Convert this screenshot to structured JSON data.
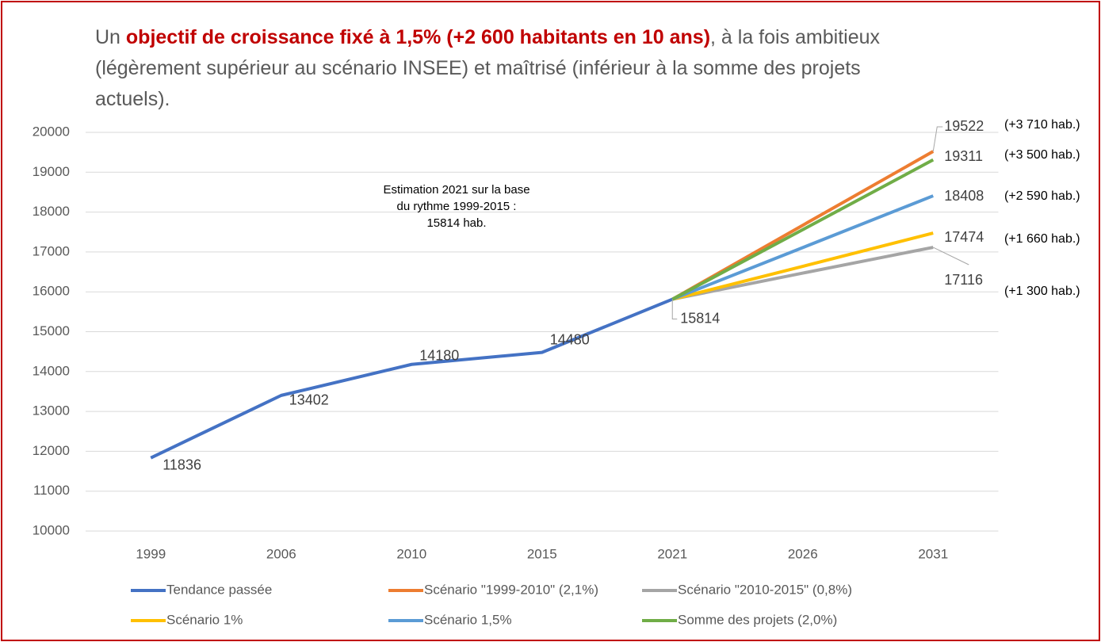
{
  "chart_data": {
    "type": "line",
    "title_parts": [
      "Un ",
      "objectif de croissance fixé à 1,5% (+2 600 habitants en 10 ans)",
      ", à la fois ambitieux (légèrement supérieur au scénario INSEE) et maîtrisé (inférieur à la somme des projets actuels)."
    ],
    "categories": [
      "1999",
      "2006",
      "2010",
      "2015",
      "2021",
      "2026",
      "2031"
    ],
    "series": [
      {
        "name": "Tendance passée",
        "color": "#4472c4",
        "values": [
          11836,
          13402,
          14180,
          14480,
          15814,
          null,
          null
        ]
      },
      {
        "name": "Scénario \"1999-2010\" (2,1%)",
        "color": "#ed7d31",
        "values": [
          null,
          null,
          null,
          null,
          15814,
          17670,
          19522
        ]
      },
      {
        "name": "Scénario \"2010-2015\" (0,8%)",
        "color": "#a5a5a5",
        "values": [
          null,
          null,
          null,
          null,
          15814,
          16470,
          17116
        ]
      },
      {
        "name": "Scénario 1%",
        "color": "#ffc000",
        "values": [
          null,
          null,
          null,
          null,
          15814,
          16640,
          17474
        ]
      },
      {
        "name": "Scénario 1,5%",
        "color": "#5b9bd5",
        "values": [
          null,
          null,
          null,
          null,
          15814,
          17110,
          18408
        ]
      },
      {
        "name": "Somme des projets (2,0%)",
        "color": "#70ad47",
        "values": [
          null,
          null,
          null,
          null,
          15814,
          17560,
          19311
        ]
      }
    ],
    "annotations": [
      "(+3 710 hab.)",
      "(+1 300 hab.)",
      "(+1 660 hab.)",
      "(+2 590 hab.)",
      "(+3 500 hab.)"
    ],
    "note_lines": [
      "Estimation 2021 sur la base",
      "du rythme 1999-2015 :",
      "15814 hab."
    ],
    "ylim": [
      10000,
      20000
    ],
    "yticks": [
      10000,
      11000,
      12000,
      13000,
      14000,
      15000,
      16000,
      17000,
      18000,
      19000,
      20000
    ],
    "grid": true
  }
}
